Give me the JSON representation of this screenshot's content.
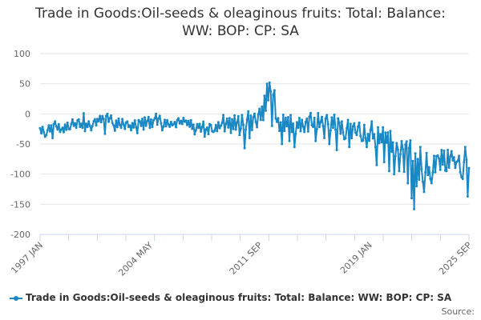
{
  "colors": {
    "series": "#1a88c4",
    "grid": "#e6e6e6",
    "axis": "#ccd6eb"
  },
  "chart_data": {
    "type": "line",
    "title": "Trade in Goods:Oil-seeds & oleaginous fruits: Total: Balance: WW: BOP: CP: SA",
    "title_lines": [
      "Trade in Goods:Oil-seeds & oleaginous fruits: Total: Balance:",
      "WW: BOP: CP: SA"
    ],
    "xlabel": "",
    "ylabel": "",
    "ylim": [
      -200,
      100
    ],
    "yticks": [
      100,
      50,
      0,
      -50,
      -100,
      -150,
      -200
    ],
    "x_range": [
      "1997 JAN",
      "2025 SEP"
    ],
    "x_tick_labels": [
      "1997 JAN",
      "2004 MAY",
      "2011 SEP",
      "2019 JAN",
      "2025 SEP"
    ],
    "x_tick_positions": [
      0,
      88,
      176,
      264,
      344
    ],
    "minor_tick_count": 15,
    "legend": "Trade in Goods:Oil-seeds & oleaginous fruits: Total: Balance: WW: BOP: CP: SA",
    "legend_position": "bottom",
    "series": [
      {
        "name": "Trade in Goods:Oil-seeds & oleaginous fruits: Total: Balance: WW: BOP: CP: SA",
        "anchors": [
          [
            0,
            -27
          ],
          [
            6,
            -29
          ],
          [
            12,
            -18
          ],
          [
            18,
            -24
          ],
          [
            24,
            -20
          ],
          [
            30,
            -14
          ],
          [
            36,
            -22
          ],
          [
            42,
            -14
          ],
          [
            48,
            -10
          ],
          [
            54,
            -6
          ],
          [
            60,
            -16
          ],
          [
            66,
            -14
          ],
          [
            72,
            -22
          ],
          [
            78,
            -17
          ],
          [
            84,
            -13
          ],
          [
            90,
            -14
          ],
          [
            96,
            -11
          ],
          [
            102,
            -17
          ],
          [
            108,
            -14
          ],
          [
            114,
            -13
          ],
          [
            120,
            -18
          ],
          [
            126,
            -20
          ],
          [
            132,
            -30
          ],
          [
            138,
            -26
          ],
          [
            144,
            -20
          ],
          [
            150,
            -21
          ],
          [
            156,
            -18
          ],
          [
            162,
            -14
          ],
          [
            168,
            -12
          ],
          [
            174,
            -10
          ],
          [
            176,
            -7
          ],
          [
            178,
            0
          ],
          [
            180,
            8
          ],
          [
            182,
            20
          ],
          [
            184,
            30
          ],
          [
            186,
            36
          ],
          [
            188,
            38
          ],
          [
            190,
            -20
          ],
          [
            196,
            -15
          ],
          [
            202,
            -18
          ],
          [
            208,
            -20
          ],
          [
            214,
            -20
          ],
          [
            220,
            -10
          ],
          [
            226,
            -16
          ],
          [
            232,
            -15
          ],
          [
            238,
            -18
          ],
          [
            244,
            -28
          ],
          [
            250,
            -25
          ],
          [
            256,
            -30
          ],
          [
            262,
            -30
          ],
          [
            268,
            -35
          ],
          [
            274,
            -38
          ],
          [
            280,
            -45
          ],
          [
            286,
            -55
          ],
          [
            292,
            -58
          ],
          [
            296,
            -62
          ],
          [
            300,
            -68
          ],
          [
            304,
            -100
          ],
          [
            308,
            -110
          ],
          [
            312,
            -95
          ],
          [
            316,
            -88
          ],
          [
            320,
            -82
          ],
          [
            324,
            -78
          ],
          [
            328,
            -80
          ],
          [
            332,
            -85
          ],
          [
            336,
            -88
          ],
          [
            340,
            -92
          ],
          [
            344,
            -92
          ]
        ],
        "noise": [
          6,
          -9,
          11,
          -4,
          13,
          -12,
          3,
          15,
          -7,
          8,
          -14,
          5,
          10,
          -3,
          -11,
          7,
          14,
          -6,
          2,
          -13,
          9,
          -8,
          12,
          -2,
          -10,
          4,
          16,
          -5,
          1,
          -15,
          6,
          11,
          -9,
          3,
          -7,
          13,
          -12,
          8,
          -4,
          10,
          -6,
          14,
          -11,
          2,
          7,
          -13,
          5,
          -3,
          12,
          -8,
          9,
          -1,
          -14,
          6,
          11,
          -10,
          4,
          15,
          -5,
          -9,
          3,
          8,
          -12,
          13,
          -7,
          1,
          10,
          -4,
          -15,
          7,
          12,
          -2,
          5,
          -11,
          9,
          -6,
          14,
          -8,
          2,
          11
        ],
        "spikes": [
          [
            4,
            -38
          ],
          [
            10,
            -40
          ],
          [
            16,
            -30
          ],
          [
            23,
            -25
          ],
          [
            35,
            1
          ],
          [
            41,
            -27
          ],
          [
            52,
            -33
          ],
          [
            60,
            -28
          ],
          [
            65,
            -23
          ],
          [
            78,
            -32
          ],
          [
            83,
            -26
          ],
          [
            88,
            -23
          ],
          [
            93,
            0
          ],
          [
            98,
            -27
          ],
          [
            106,
            -19
          ],
          [
            112,
            -16
          ],
          [
            116,
            -13
          ],
          [
            124,
            -34
          ],
          [
            131,
            -13
          ],
          [
            136,
            -17
          ],
          [
            140,
            -28
          ],
          [
            147,
            -2
          ],
          [
            152,
            -7
          ],
          [
            160,
            -35
          ],
          [
            164,
            -57
          ],
          [
            168,
            -40
          ],
          [
            178,
            12
          ],
          [
            180,
            30
          ],
          [
            182,
            50
          ],
          [
            184,
            52
          ],
          [
            186,
            -20
          ],
          [
            194,
            -50
          ],
          [
            200,
            -45
          ],
          [
            204,
            -55
          ],
          [
            212,
            -30
          ],
          [
            216,
            -5
          ],
          [
            221,
            -45
          ],
          [
            228,
            -40
          ],
          [
            232,
            -50
          ],
          [
            238,
            -60
          ],
          [
            244,
            -42
          ],
          [
            248,
            -55
          ],
          [
            254,
            -35
          ],
          [
            258,
            -45
          ],
          [
            262,
            -55
          ],
          [
            270,
            -85
          ],
          [
            276,
            -80
          ],
          [
            280,
            -95
          ],
          [
            284,
            -100
          ],
          [
            288,
            -95
          ],
          [
            292,
            -96
          ],
          [
            295,
            -115
          ],
          [
            298,
            -140
          ],
          [
            300,
            -158
          ],
          [
            302,
            -120
          ],
          [
            305,
            -55
          ],
          [
            310,
            -65
          ],
          [
            314,
            -115
          ],
          [
            318,
            -70
          ],
          [
            322,
            -60
          ],
          [
            326,
            -95
          ],
          [
            330,
            -62
          ],
          [
            334,
            -80
          ],
          [
            338,
            -105
          ],
          [
            341,
            -55
          ],
          [
            343,
            -137
          ],
          [
            344,
            -90
          ]
        ],
        "points_per_unit": 1
      }
    ]
  },
  "source_label": "Source:"
}
